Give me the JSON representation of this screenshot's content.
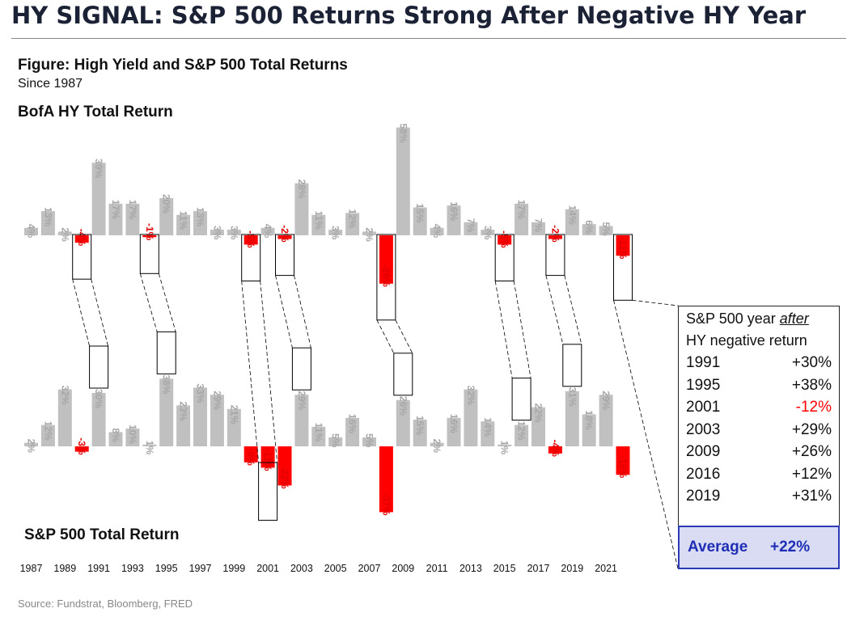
{
  "header": {
    "title": "HY SIGNAL: S&P 500 Returns Strong After Negative HY Year",
    "figure_title": "Figure: High Yield and S&P 500 Total Returns",
    "figure_subtitle": "Since 1987",
    "source": "Source: Fundstrat, Bloomberg, FRED"
  },
  "colors": {
    "positive": "#c0c0c0",
    "negative": "#ff0000",
    "label_negative": "#e00000",
    "label_positive": "#a6a6a6"
  },
  "chart_data": [
    {
      "type": "bar",
      "title": "BofA HY Total Return",
      "categories": [
        "1987",
        "1988",
        "1989",
        "1990",
        "1991",
        "1992",
        "1993",
        "1994",
        "1995",
        "1996",
        "1997",
        "1998",
        "1999",
        "2000",
        "2001",
        "2002",
        "2003",
        "2004",
        "2005",
        "2006",
        "2007",
        "2008",
        "2009",
        "2010",
        "2011",
        "2012",
        "2013",
        "2014",
        "2015",
        "2016",
        "2017",
        "2018",
        "2019",
        "2020",
        "2021",
        "2022"
      ],
      "values": [
        4,
        13,
        2,
        -4,
        39,
        17,
        17,
        -1,
        20,
        11,
        13,
        3,
        3,
        -5,
        4,
        -2,
        28,
        11,
        3,
        12,
        2,
        -26,
        58,
        15,
        4,
        16,
        7,
        3,
        -5,
        17,
        7,
        -2,
        14,
        6,
        5,
        -11
      ],
      "labels": [
        "4%",
        "13%",
        "2%",
        "-4%",
        "39%",
        "17%",
        "17%",
        "-1%",
        "20%",
        "11%",
        "13%",
        "3%",
        "3%",
        "-5%",
        "4%",
        "-2%",
        "28%",
        "11%",
        "3%",
        "12%",
        "2%",
        "-26%",
        "58%",
        "15%",
        "4%",
        "16%",
        "7%",
        "3%",
        "-5%",
        "17%",
        "7%",
        "-2%",
        "14%",
        "6%",
        "5%",
        "-11%"
      ],
      "unit": "%"
    },
    {
      "type": "bar",
      "title": "S&P 500 Total Return",
      "categories": [
        "1987",
        "1988",
        "1989",
        "1990",
        "1991",
        "1992",
        "1993",
        "1994",
        "1995",
        "1996",
        "1997",
        "1998",
        "1999",
        "2000",
        "2001",
        "2002",
        "2003",
        "2004",
        "2005",
        "2006",
        "2007",
        "2008",
        "2009",
        "2010",
        "2011",
        "2012",
        "2013",
        "2014",
        "2015",
        "2016",
        "2017",
        "2018",
        "2019",
        "2020",
        "2021",
        "2022"
      ],
      "values": [
        2,
        12,
        32,
        -3,
        30,
        8,
        10,
        1,
        38,
        23,
        33,
        29,
        21,
        -9,
        -12,
        -22,
        29,
        11,
        5,
        16,
        5,
        -37,
        26,
        15,
        2,
        16,
        32,
        14,
        1,
        12,
        22,
        -4,
        31,
        18,
        29,
        -16
      ],
      "labels": [
        "2%",
        "12%",
        "32%",
        "-3%",
        "30%",
        "8%",
        "10%",
        "1%",
        "38%",
        "23%",
        "33%",
        "29%",
        "21%",
        "-9%",
        "-12%",
        "-22%",
        "29%",
        "11%",
        "5%",
        "16%",
        "5%",
        "-37%",
        "26%",
        "15%",
        "2%",
        "16%",
        "32%",
        "14%",
        "1%",
        "12%",
        "22%",
        "-4%",
        "31%",
        "18%",
        "29%",
        "-16%"
      ],
      "x_tick_labels": [
        "1987",
        "1989",
        "1991",
        "1993",
        "1995",
        "1997",
        "1999",
        "2001",
        "2003",
        "2005",
        "2007",
        "2009",
        "2011",
        "2013",
        "2015",
        "2017",
        "2019",
        "2021"
      ],
      "unit": "%"
    }
  ],
  "highlight_pairs": [
    {
      "from": "1990",
      "to": "1991"
    },
    {
      "from": "1994",
      "to": "1995"
    },
    {
      "from": "2000",
      "to": "2001"
    },
    {
      "from": "2002",
      "to": "2003"
    },
    {
      "from": "2008",
      "to": "2009"
    },
    {
      "from": "2015",
      "to": "2016"
    },
    {
      "from": "2018",
      "to": "2019"
    }
  ],
  "summary": {
    "heading_line1_pre": "S&P 500 year ",
    "heading_line1_em": "after",
    "heading_line2": "HY negative return",
    "rows": [
      {
        "year": "1991",
        "ret": "+30%",
        "negative": false
      },
      {
        "year": "1995",
        "ret": "+38%",
        "negative": false
      },
      {
        "year": "2001",
        "ret": "-12%",
        "negative": true
      },
      {
        "year": "2003",
        "ret": "+29%",
        "negative": false
      },
      {
        "year": "2009",
        "ret": "+26%",
        "negative": false
      },
      {
        "year": "2016",
        "ret": "+12%",
        "negative": false
      },
      {
        "year": "2019",
        "ret": "+31%",
        "negative": false
      }
    ],
    "average_label": "Average",
    "average_value": "+22%"
  }
}
